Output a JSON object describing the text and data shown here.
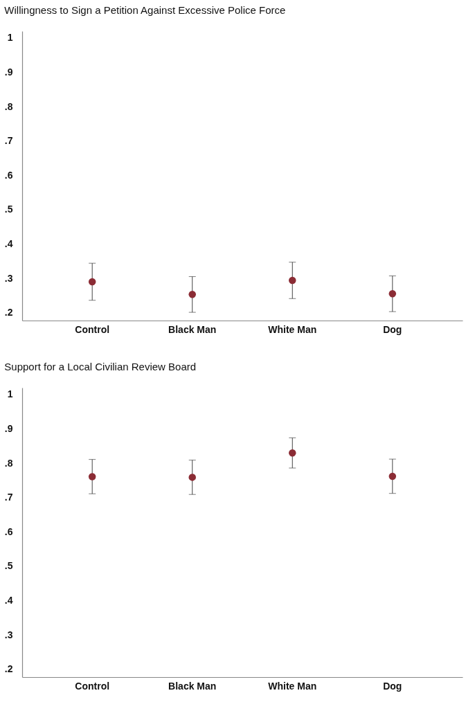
{
  "chart_data": [
    {
      "type": "scatter",
      "title": "Willingness to Sign a Petition Against Excessive Police Force",
      "categories": [
        "Control",
        "Black Man",
        "White Man",
        "Dog"
      ],
      "series": [
        {
          "color": "#8b2c35",
          "values": [
            0.29,
            0.253,
            0.294,
            0.255
          ],
          "errors": [
            0.054,
            0.052,
            0.053,
            0.052
          ]
        }
      ],
      "ylim": [
        0.177,
        1.02
      ],
      "yticks": [
        {
          "value": 0.2,
          "label": ".2"
        },
        {
          "value": 0.3,
          "label": ".3"
        },
        {
          "value": 0.4,
          "label": ".4"
        },
        {
          "value": 0.5,
          "label": ".5"
        },
        {
          "value": 0.6,
          "label": ".6"
        },
        {
          "value": 0.7,
          "label": ".7"
        },
        {
          "value": 0.8,
          "label": ".8"
        },
        {
          "value": 0.9,
          "label": ".9"
        },
        1
      ],
      "marker": "circle"
    },
    {
      "type": "scatter",
      "title": "Support for a Local Civilian Review Board",
      "categories": [
        "Control",
        "Black Man",
        "White Man",
        "Dog"
      ],
      "series": [
        {
          "color": "#8b2c35",
          "values": [
            0.761,
            0.759,
            0.83,
            0.762
          ],
          "errors": [
            0.05,
            0.05,
            0.044,
            0.05
          ]
        }
      ],
      "ylim": [
        0.177,
        1.02
      ],
      "yticks": [
        {
          "value": 0.2,
          "label": ".2"
        },
        {
          "value": 0.3,
          "label": ".3"
        },
        {
          "value": 0.4,
          "label": ".4"
        },
        {
          "value": 0.5,
          "label": ".5"
        },
        {
          "value": 0.6,
          "label": ".6"
        },
        {
          "value": 0.7,
          "label": ".7"
        },
        {
          "value": 0.8,
          "label": ".8"
        },
        {
          "value": 0.9,
          "label": ".9"
        },
        1
      ],
      "marker": "circle"
    }
  ]
}
